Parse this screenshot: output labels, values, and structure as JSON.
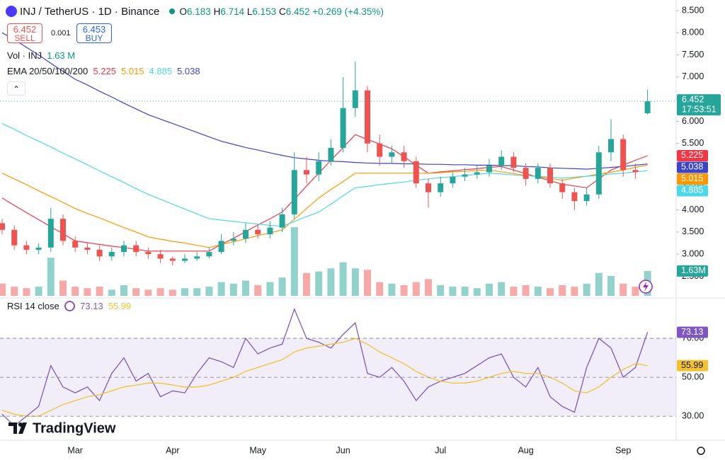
{
  "header": {
    "symbol": "INJ / TetherUS · 1D · Binance",
    "ohlc_letters": [
      "O",
      "H",
      "L",
      "C"
    ],
    "change": "+0.269 (+4.35%)",
    "sell_label": "SELL",
    "spread": 0.001,
    "buy_price": 6.453,
    "buy_label": "BUY",
    "countdown": "17:53:51",
    "branding": "TradingView"
  },
  "chart_data": [
    {
      "type": "candlestick",
      "categories": [
        null,
        null,
        null,
        null,
        null,
        null,
        "Mar",
        null,
        null,
        null,
        null,
        null,
        null,
        null,
        "Apr",
        null,
        null,
        null,
        null,
        null,
        null,
        "May",
        null,
        null,
        null,
        null,
        null,
        null,
        "Jun",
        null,
        null,
        null,
        null,
        null,
        null,
        null,
        "Jul",
        null,
        null,
        null,
        null,
        null,
        null,
        "Aug",
        null,
        null,
        null,
        null,
        null,
        null,
        null,
        "Sep",
        null,
        null
      ],
      "open": [
        3.7,
        3.55,
        3.2,
        3.1,
        3.15,
        3.8,
        3.3,
        3.15,
        3.1,
        2.95,
        3.05,
        3.2,
        3.05,
        3.0,
        2.9,
        2.85,
        2.9,
        2.95,
        3.05,
        3.3,
        3.35,
        3.55,
        3.45,
        3.6,
        3.9,
        4.9,
        4.8,
        5.1,
        5.4,
        6.3,
        6.7,
        5.5,
        5.2,
        5.3,
        5.1,
        4.6,
        4.4,
        4.6,
        4.75,
        4.8,
        4.85,
        5.0,
        5.2,
        4.95,
        4.7,
        4.95,
        4.6,
        4.4,
        4.2,
        4.35,
        5.3,
        5.6,
        4.9,
        6.183
      ],
      "high": [
        3.8,
        3.65,
        3.3,
        3.25,
        4.05,
        3.9,
        3.4,
        3.25,
        3.2,
        3.15,
        3.3,
        3.3,
        3.15,
        3.1,
        2.95,
        3.0,
        3.05,
        3.15,
        3.45,
        3.5,
        3.7,
        3.65,
        3.75,
        4.05,
        5.3,
        5.2,
        5.3,
        5.6,
        7.0,
        7.35,
        6.8,
        5.7,
        5.45,
        5.45,
        5.2,
        4.7,
        4.75,
        4.85,
        4.95,
        5.0,
        5.15,
        5.35,
        5.3,
        5.05,
        5.05,
        5.05,
        4.7,
        4.5,
        4.5,
        5.45,
        6.05,
        5.7,
        5.05,
        6.714
      ],
      "low": [
        3.45,
        3.1,
        3.0,
        3.0,
        3.05,
        3.2,
        3.05,
        3.0,
        2.85,
        2.85,
        2.95,
        2.95,
        2.9,
        2.8,
        2.75,
        2.8,
        2.85,
        2.9,
        3.0,
        3.2,
        3.25,
        3.35,
        3.35,
        3.5,
        3.8,
        4.6,
        4.65,
        5.0,
        5.3,
        6.1,
        5.3,
        5.0,
        5.05,
        4.95,
        4.5,
        4.05,
        4.3,
        4.5,
        4.65,
        4.7,
        4.75,
        4.9,
        4.85,
        4.55,
        4.6,
        4.5,
        4.25,
        4.0,
        4.1,
        4.25,
        5.1,
        4.75,
        4.7,
        6.153
      ],
      "close": [
        3.55,
        3.2,
        3.1,
        3.15,
        3.8,
        3.3,
        3.15,
        3.1,
        2.95,
        3.05,
        3.2,
        3.05,
        3.0,
        2.9,
        2.85,
        2.9,
        2.95,
        3.05,
        3.3,
        3.35,
        3.55,
        3.45,
        3.6,
        3.9,
        4.9,
        4.8,
        5.1,
        5.4,
        6.3,
        6.7,
        5.5,
        5.2,
        5.3,
        5.1,
        4.6,
        4.4,
        4.6,
        4.75,
        4.8,
        4.85,
        5.0,
        5.2,
        4.95,
        4.7,
        4.95,
        4.6,
        4.4,
        4.2,
        4.35,
        5.3,
        5.6,
        4.9,
        4.85,
        6.452
      ],
      "colors": {
        "up": "#26a69a",
        "down": "#ef5350"
      },
      "ylim": [
        2.06,
        8.74
      ],
      "yticks": [
        {
          "value": 2.5,
          "label": "2.500"
        },
        {
          "value": 3,
          "label": "3.000"
        },
        {
          "value": 3.5,
          "label": "3.500"
        },
        {
          "value": 4,
          "label": "4.000"
        },
        {
          "value": 4.5,
          "label": "4.500"
        },
        {
          "value": 5,
          "label": "5.000"
        },
        {
          "value": 5.5,
          "label": "5.500"
        },
        {
          "value": 6,
          "label": "6.000"
        },
        {
          "value": 6.5,
          "label": "6.500"
        },
        {
          "value": 7,
          "label": "7.000"
        },
        {
          "value": 7.5,
          "label": "7.500"
        },
        {
          "value": 8,
          "label": "8.000"
        },
        {
          "value": 8.5,
          "label": "8.500"
        }
      ],
      "ema_label": "EMA 20/50/100/200",
      "series": [
        {
          "color": "#f23645",
          "values": [
            4.27,
            4.1,
            3.94,
            3.78,
            3.62,
            3.46,
            3.3,
            3.26,
            3.22,
            3.18,
            3.15,
            3.11,
            3.07,
            3.07,
            3.07,
            3.07,
            3.07,
            3.07,
            3.22,
            3.36,
            3.51,
            3.66,
            3.8,
            3.95,
            4.24,
            4.54,
            4.83,
            5.12,
            5.41,
            5.7,
            5.59,
            5.49,
            5.38,
            5.2,
            5.01,
            4.83,
            4.86,
            4.88,
            4.91,
            4.93,
            4.96,
            4.98,
            4.9,
            4.82,
            4.74,
            4.66,
            4.58,
            4.54,
            4.5,
            4.7,
            4.9,
            5.01,
            5.12,
            5.225
          ]
        },
        {
          "color": "#ff9800",
          "values": [
            4.83,
            4.7,
            4.57,
            4.43,
            4.3,
            4.17,
            4.03,
            3.92,
            3.82,
            3.71,
            3.6,
            3.5,
            3.39,
            3.34,
            3.29,
            3.25,
            3.2,
            3.15,
            3.22,
            3.28,
            3.35,
            3.42,
            3.48,
            3.55,
            3.79,
            4.03,
            4.27,
            4.46,
            4.64,
            4.83,
            4.83,
            4.83,
            4.83,
            4.83,
            4.83,
            4.83,
            4.84,
            4.86,
            4.87,
            4.89,
            4.9,
            4.86,
            4.82,
            4.78,
            4.75,
            4.71,
            4.67,
            4.72,
            4.76,
            4.81,
            4.85,
            4.9,
            4.96,
            5.015
          ]
        },
        {
          "color": "#4dd8e8",
          "values": [
            5.95,
            5.82,
            5.68,
            5.55,
            5.42,
            5.28,
            5.15,
            5.02,
            4.88,
            4.75,
            4.62,
            4.48,
            4.35,
            4.24,
            4.13,
            4.02,
            3.91,
            3.8,
            3.77,
            3.74,
            3.71,
            3.68,
            3.65,
            3.63,
            3.74,
            3.85,
            3.95,
            4.13,
            4.32,
            4.5,
            4.53,
            4.57,
            4.6,
            4.63,
            4.67,
            4.7,
            4.73,
            4.75,
            4.78,
            4.8,
            4.83,
            4.81,
            4.79,
            4.77,
            4.76,
            4.74,
            4.72,
            4.74,
            4.76,
            4.78,
            4.81,
            4.83,
            4.86,
            4.885
          ]
        },
        {
          "color": "#3c44c8",
          "values": [
            8.0,
            7.85,
            7.67,
            7.5,
            7.31,
            7.13,
            6.95,
            6.82,
            6.68,
            6.55,
            6.41,
            6.28,
            6.15,
            6.05,
            5.95,
            5.85,
            5.75,
            5.65,
            5.55,
            5.48,
            5.41,
            5.35,
            5.29,
            5.23,
            5.18,
            5.15,
            5.12,
            5.1,
            5.09,
            5.07,
            5.06,
            5.05,
            5.05,
            5.04,
            5.04,
            5.03,
            5.03,
            5.02,
            5.02,
            5.01,
            5.01,
            5.0,
            5.0,
            4.98,
            4.97,
            4.95,
            4.94,
            4.93,
            4.92,
            4.94,
            4.96,
            4.98,
            5.01,
            5.038
          ]
        }
      ],
      "volume": {
        "name": "Vol · INJ",
        "legend_value": "1.63 M",
        "axis": "y2",
        "values": [
          0.8,
          0.6,
          0.5,
          0.6,
          2.5,
          1.0,
          0.6,
          0.5,
          0.6,
          0.4,
          0.7,
          0.5,
          0.4,
          0.5,
          0.4,
          0.5,
          0.5,
          0.6,
          0.9,
          0.8,
          1.0,
          0.7,
          0.9,
          1.2,
          4.5,
          1.5,
          1.6,
          1.8,
          2.2,
          1.8,
          1.7,
          0.9,
          0.8,
          0.7,
          0.9,
          1.1,
          0.7,
          0.6,
          0.6,
          0.5,
          0.8,
          0.9,
          0.6,
          0.7,
          0.6,
          0.5,
          0.7,
          0.6,
          0.8,
          1.5,
          1.3,
          0.8,
          0.6,
          1.63
        ],
        "value_labels": [
          null,
          null,
          null,
          null,
          null,
          null,
          null,
          null,
          null,
          null,
          null,
          null,
          null,
          null,
          null,
          null,
          null,
          null,
          null,
          null,
          null,
          null,
          null,
          null,
          null,
          null,
          null,
          null,
          null,
          null,
          null,
          null,
          null,
          null,
          null,
          null,
          null,
          null,
          null,
          null,
          null,
          null,
          null,
          null,
          null,
          null,
          null,
          null,
          null,
          null,
          null,
          null,
          null,
          "1.63M"
        ]
      },
      "y2lim": [
        0,
        19.4
      ]
    },
    {
      "type": "line",
      "title": "RSI 14 close",
      "series": [
        {
          "color": "#7e57c2",
          "values": [
            31,
            25,
            30,
            35,
            56,
            45,
            42,
            45,
            38,
            52,
            60,
            48,
            52,
            40,
            43,
            42,
            52,
            60,
            58,
            55,
            70,
            62,
            65,
            67,
            85,
            70,
            68,
            65,
            72,
            78,
            52,
            50,
            55,
            48,
            38,
            45,
            48,
            50,
            52,
            56,
            60,
            62,
            50,
            45,
            55,
            40,
            35,
            32,
            55,
            70,
            65,
            50,
            55,
            73.13
          ]
        },
        {
          "color": "#f2c230",
          "values": [
            33,
            31,
            30,
            30,
            33,
            36,
            38,
            40,
            41,
            43,
            45,
            46,
            47,
            47,
            46,
            45,
            45,
            46,
            48,
            50,
            53,
            55,
            57,
            59,
            63,
            65,
            66,
            67,
            68,
            70,
            67,
            63,
            60,
            57,
            53,
            50,
            48,
            47,
            47,
            48,
            50,
            52,
            53,
            52,
            52,
            50,
            47,
            43,
            42,
            45,
            50,
            54,
            57,
            55.99
          ]
        }
      ],
      "ylim": [
        18.4,
        89.3
      ],
      "yticks": [
        {
          "value": 30,
          "label": "30.00"
        },
        {
          "value": 50,
          "label": "50.00"
        },
        {
          "value": 70,
          "label": "70.00"
        }
      ]
    }
  ]
}
